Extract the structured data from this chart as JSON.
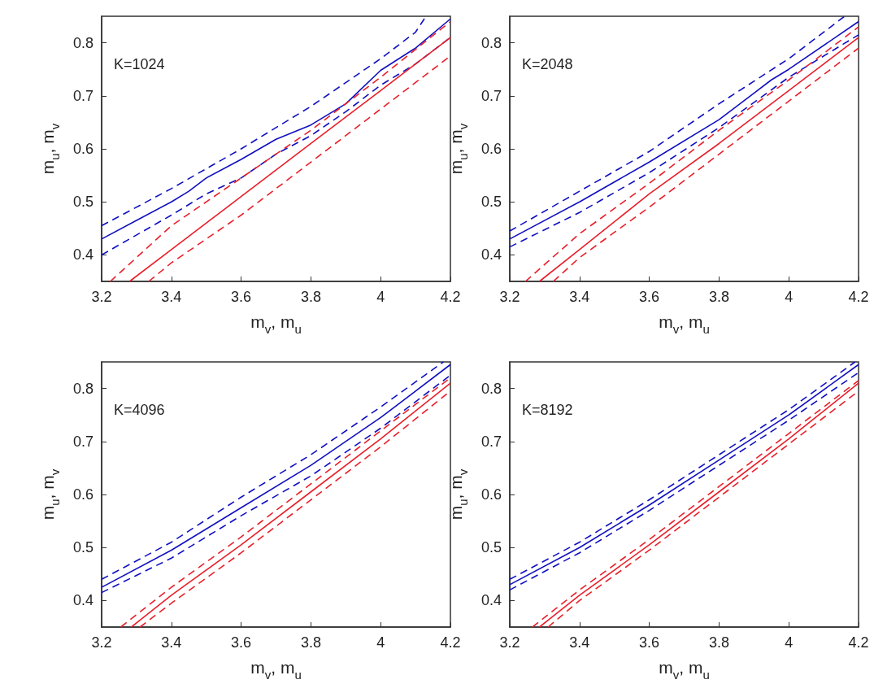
{
  "chart_data": [
    {
      "type": "line",
      "xlabel": "m$_{v}$, m$_{u}$",
      "ylabel": "m$_{u}$, m$_{v}$",
      "annotations": [
        "K=1024"
      ],
      "xlim": [
        3.2,
        4.2
      ],
      "ylim": [
        0.35,
        0.85
      ],
      "xticks": [
        3.2,
        3.4,
        3.6,
        3.8,
        4,
        4.2
      ],
      "yticks": [
        0.4,
        0.5,
        0.6,
        0.7,
        0.8
      ],
      "grid": false,
      "marker": "none",
      "series": [
        {
          "color": "#1010c0",
          "line_style": "solid",
          "x": [
            3.2,
            3.3,
            3.4,
            3.45,
            3.5,
            3.6,
            3.7,
            3.8,
            3.85,
            3.9,
            4.0,
            4.1,
            4.2
          ],
          "values": [
            0.43,
            0.465,
            0.5,
            0.52,
            0.545,
            0.58,
            0.618,
            0.645,
            0.665,
            0.685,
            0.748,
            0.79,
            0.845
          ]
        },
        {
          "color": "#1010c0",
          "line_style": "dashed",
          "x": [
            3.2,
            3.4,
            3.6,
            3.8,
            4.0,
            4.1,
            4.13
          ],
          "values": [
            0.455,
            0.525,
            0.6,
            0.68,
            0.77,
            0.82,
            0.85
          ]
        },
        {
          "color": "#1010c0",
          "line_style": "dashed",
          "x": [
            3.2,
            3.4,
            3.5,
            3.6,
            3.7,
            3.8,
            3.9,
            4.0,
            4.1,
            4.2
          ],
          "values": [
            0.4,
            0.475,
            0.515,
            0.545,
            0.59,
            0.625,
            0.67,
            0.72,
            0.76,
            0.81
          ]
        },
        {
          "color": "#e8202a",
          "line_style": "solid",
          "x": [
            3.28,
            3.4,
            3.6,
            3.8,
            4.0,
            4.2
          ],
          "values": [
            0.35,
            0.41,
            0.51,
            0.61,
            0.71,
            0.81
          ]
        },
        {
          "color": "#e8202a",
          "line_style": "dashed",
          "x": [
            3.225,
            3.4,
            3.6,
            3.8,
            4.0,
            4.2
          ],
          "values": [
            0.35,
            0.455,
            0.545,
            0.635,
            0.735,
            0.84
          ]
        },
        {
          "color": "#e8202a",
          "line_style": "dashed",
          "x": [
            3.335,
            3.4,
            3.6,
            3.8,
            4.0,
            4.2
          ],
          "values": [
            0.35,
            0.385,
            0.475,
            0.575,
            0.675,
            0.775
          ]
        }
      ]
    },
    {
      "type": "line",
      "xlabel": "m$_{v}$, m$_{u}$",
      "ylabel": "m$_{u}$, m$_{v}$",
      "annotations": [
        "K=2048"
      ],
      "xlim": [
        3.2,
        4.2
      ],
      "ylim": [
        0.35,
        0.85
      ],
      "xticks": [
        3.2,
        3.4,
        3.6,
        3.8,
        4,
        4.2
      ],
      "yticks": [
        0.4,
        0.5,
        0.6,
        0.7,
        0.8
      ],
      "grid": false,
      "marker": "none",
      "series": [
        {
          "color": "#1010c0",
          "line_style": "solid",
          "x": [
            3.2,
            3.4,
            3.6,
            3.8,
            3.9,
            3.95,
            4.0,
            4.2
          ],
          "values": [
            0.43,
            0.5,
            0.575,
            0.655,
            0.705,
            0.73,
            0.75,
            0.84
          ]
        },
        {
          "color": "#1010c0",
          "line_style": "dashed",
          "x": [
            3.2,
            3.4,
            3.6,
            3.8,
            4.0,
            4.16
          ],
          "values": [
            0.445,
            0.52,
            0.595,
            0.685,
            0.77,
            0.85
          ]
        },
        {
          "color": "#1010c0",
          "line_style": "dashed",
          "x": [
            3.2,
            3.4,
            3.6,
            3.8,
            4.0,
            4.2
          ],
          "values": [
            0.415,
            0.48,
            0.555,
            0.64,
            0.735,
            0.815
          ]
        },
        {
          "color": "#e8202a",
          "line_style": "solid",
          "x": [
            3.285,
            3.4,
            3.6,
            3.8,
            4.0,
            4.2
          ],
          "values": [
            0.35,
            0.41,
            0.515,
            0.61,
            0.71,
            0.81
          ]
        },
        {
          "color": "#e8202a",
          "line_style": "dashed",
          "x": [
            3.245,
            3.4,
            3.6,
            3.8,
            4.0,
            4.2
          ],
          "values": [
            0.35,
            0.44,
            0.535,
            0.635,
            0.73,
            0.83
          ]
        },
        {
          "color": "#e8202a",
          "line_style": "dashed",
          "x": [
            3.325,
            3.4,
            3.6,
            3.8,
            4.0,
            4.2
          ],
          "values": [
            0.35,
            0.395,
            0.49,
            0.59,
            0.69,
            0.79
          ]
        }
      ]
    },
    {
      "type": "line",
      "xlabel": "m$_{v}$, m$_{u}$",
      "ylabel": "m$_{u}$, m$_{v}$",
      "annotations": [
        "K=4096"
      ],
      "xlim": [
        3.2,
        4.2
      ],
      "ylim": [
        0.35,
        0.85
      ],
      "xticks": [
        3.2,
        3.4,
        3.6,
        3.8,
        4,
        4.2
      ],
      "yticks": [
        0.4,
        0.5,
        0.6,
        0.7,
        0.8
      ],
      "grid": false,
      "marker": "none",
      "series": [
        {
          "color": "#1010c0",
          "line_style": "solid",
          "x": [
            3.2,
            3.4,
            3.6,
            3.8,
            4.0,
            4.2
          ],
          "values": [
            0.425,
            0.495,
            0.575,
            0.655,
            0.745,
            0.845
          ]
        },
        {
          "color": "#1010c0",
          "line_style": "dashed",
          "x": [
            3.2,
            3.4,
            3.6,
            3.8,
            4.0,
            4.18
          ],
          "values": [
            0.44,
            0.51,
            0.595,
            0.675,
            0.765,
            0.85
          ]
        },
        {
          "color": "#1010c0",
          "line_style": "dashed",
          "x": [
            3.2,
            3.4,
            3.6,
            3.8,
            4.0,
            4.2
          ],
          "values": [
            0.415,
            0.48,
            0.56,
            0.635,
            0.725,
            0.825
          ]
        },
        {
          "color": "#e8202a",
          "line_style": "solid",
          "x": [
            3.285,
            3.4,
            3.6,
            3.8,
            4.0,
            4.2
          ],
          "values": [
            0.35,
            0.41,
            0.505,
            0.605,
            0.705,
            0.81
          ]
        },
        {
          "color": "#e8202a",
          "line_style": "dashed",
          "x": [
            3.255,
            3.4,
            3.6,
            3.8,
            4.0,
            4.2
          ],
          "values": [
            0.35,
            0.425,
            0.52,
            0.62,
            0.72,
            0.82
          ]
        },
        {
          "color": "#e8202a",
          "line_style": "dashed",
          "x": [
            3.31,
            3.4,
            3.6,
            3.8,
            4.0,
            4.2
          ],
          "values": [
            0.35,
            0.395,
            0.49,
            0.59,
            0.69,
            0.795
          ]
        }
      ]
    },
    {
      "type": "line",
      "xlabel": "m$_{v}$, m$_{u}$",
      "ylabel": "m$_{u}$, m$_{v}$",
      "annotations": [
        "K=8192"
      ],
      "xlim": [
        3.2,
        4.2
      ],
      "ylim": [
        0.35,
        0.85
      ],
      "xticks": [
        3.2,
        3.4,
        3.6,
        3.8,
        4,
        4.2
      ],
      "yticks": [
        0.4,
        0.5,
        0.6,
        0.7,
        0.8
      ],
      "grid": false,
      "marker": "none",
      "series": [
        {
          "color": "#1010c0",
          "line_style": "solid",
          "x": [
            3.2,
            3.4,
            3.6,
            3.8,
            4.0,
            4.2
          ],
          "values": [
            0.43,
            0.5,
            0.58,
            0.665,
            0.75,
            0.845
          ]
        },
        {
          "color": "#1010c0",
          "line_style": "dashed",
          "x": [
            3.2,
            3.4,
            3.6,
            3.8,
            4.0,
            4.19
          ],
          "values": [
            0.44,
            0.51,
            0.59,
            0.675,
            0.76,
            0.85
          ]
        },
        {
          "color": "#1010c0",
          "line_style": "dashed",
          "x": [
            3.2,
            3.4,
            3.6,
            3.8,
            4.0,
            4.2
          ],
          "values": [
            0.42,
            0.49,
            0.57,
            0.655,
            0.74,
            0.83
          ]
        },
        {
          "color": "#e8202a",
          "line_style": "solid",
          "x": [
            3.285,
            3.4,
            3.6,
            3.8,
            4.0,
            4.2
          ],
          "values": [
            0.35,
            0.41,
            0.505,
            0.605,
            0.705,
            0.81
          ]
        },
        {
          "color": "#e8202a",
          "line_style": "dashed",
          "x": [
            3.265,
            3.4,
            3.6,
            3.8,
            4.0,
            4.2
          ],
          "values": [
            0.35,
            0.42,
            0.515,
            0.615,
            0.715,
            0.815
          ]
        },
        {
          "color": "#e8202a",
          "line_style": "dashed",
          "x": [
            3.31,
            3.4,
            3.6,
            3.8,
            4.0,
            4.2
          ],
          "values": [
            0.35,
            0.4,
            0.495,
            0.595,
            0.695,
            0.795
          ]
        }
      ]
    }
  ]
}
